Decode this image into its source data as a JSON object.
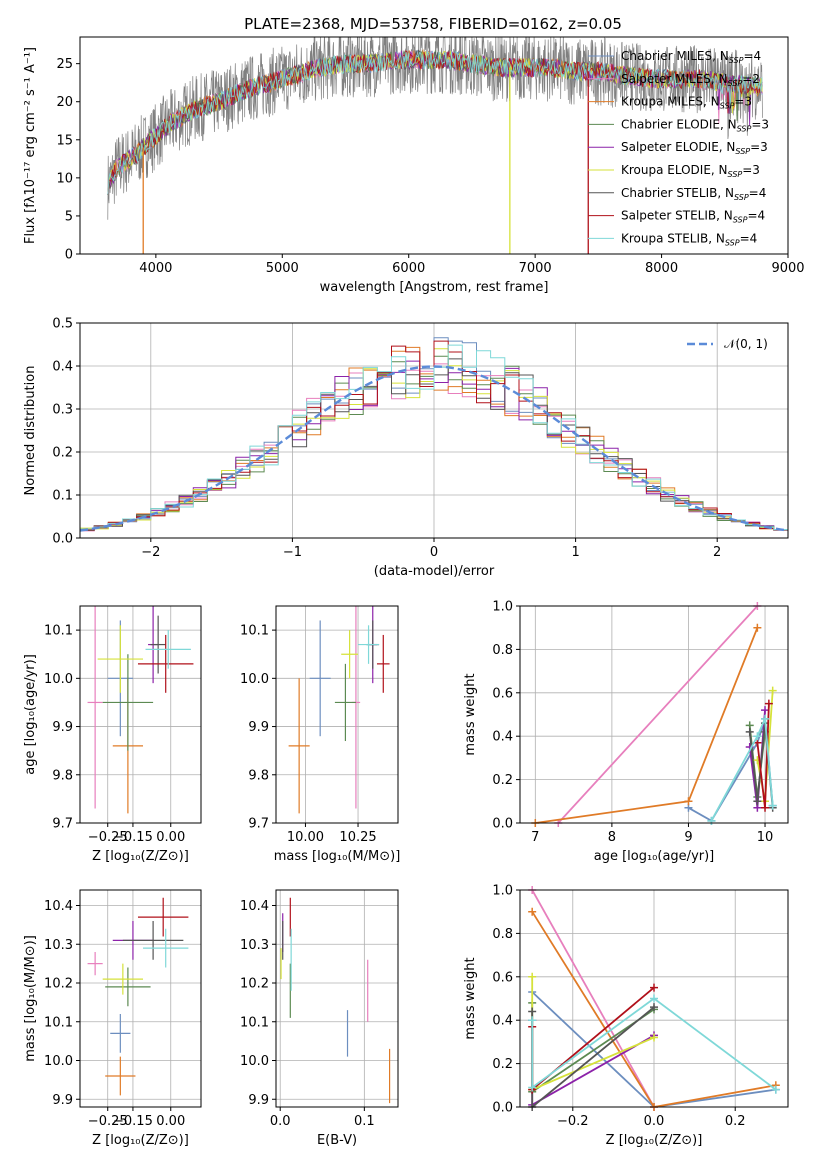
{
  "figure_title": "PLATE=2368, MJD=53758, FIBERID=0162, z=0.05",
  "colors": {
    "chab_miles": "#6c8ebf",
    "salp_miles": "#e77fbd",
    "krou_miles": "#e07b27",
    "chab_elodie": "#5c8a52",
    "salp_elodie": "#8c22a9",
    "krou_elodie": "#d6e23a",
    "chab_stelib": "#555555",
    "salp_stelib": "#b0101a",
    "krou_stelib": "#7fd8d8",
    "data": "#808080",
    "normal": "#5b8bd8"
  },
  "chart_data": [
    {
      "id": "spectrum",
      "type": "line",
      "xlabel": "wavelength [Angstrom, rest frame]",
      "ylabel": "Flux [fλ10⁻¹⁷ erg cm⁻² s⁻¹ A⁻¹]",
      "xlim": [
        3400,
        9000
      ],
      "ylim": [
        0,
        28.5
      ],
      "xticks": [
        "4000",
        "5000",
        "6000",
        "7000",
        "8000",
        "9000"
      ],
      "yticks": [
        "0",
        "5",
        "10",
        "15",
        "20",
        "25"
      ],
      "legend_position": "right",
      "legend": [
        {
          "label": "Chabrier MILES, N",
          "sub": "SSP",
          "tail": "=4"
        },
        {
          "label": "Salpeter MILES, N",
          "sub": "SSP",
          "tail": "=2"
        },
        {
          "label": "Kroupa MILES, N",
          "sub": "SSP",
          "tail": "=3"
        },
        {
          "label": "Chabrier ELODIE, N",
          "sub": "SSP",
          "tail": "=3"
        },
        {
          "label": "Salpeter ELODIE, N",
          "sub": "SSP",
          "tail": "=3"
        },
        {
          "label": "Kroupa ELODIE, N",
          "sub": "SSP",
          "tail": "=3"
        },
        {
          "label": "Chabrier STELIB, N",
          "sub": "SSP",
          "tail": "=4"
        },
        {
          "label": "Salpeter STELIB, N",
          "sub": "SSP",
          "tail": "=4"
        },
        {
          "label": "Kroupa STELIB, N",
          "sub": "SSP",
          "tail": "=4"
        }
      ],
      "continuum": [
        [
          3620,
          9
        ],
        [
          3700,
          11.5
        ],
        [
          3800,
          12.5
        ],
        [
          3900,
          14
        ],
        [
          4000,
          15.5
        ],
        [
          4100,
          17
        ],
        [
          4300,
          19
        ],
        [
          4500,
          20
        ],
        [
          4700,
          21.5
        ],
        [
          4900,
          22.5
        ],
        [
          5100,
          23.5
        ],
        [
          5300,
          24.5
        ],
        [
          5500,
          25
        ],
        [
          5700,
          25
        ],
        [
          5900,
          25.5
        ],
        [
          6100,
          25.5
        ],
        [
          6300,
          25.5
        ],
        [
          6500,
          25
        ],
        [
          6700,
          24.5
        ],
        [
          6900,
          24.5
        ],
        [
          7100,
          24.5
        ],
        [
          7300,
          24
        ],
        [
          7500,
          24
        ],
        [
          7700,
          23.5
        ],
        [
          7900,
          23
        ],
        [
          8100,
          23
        ],
        [
          8300,
          23
        ],
        [
          8500,
          22.5
        ],
        [
          8800,
          22
        ]
      ],
      "dropouts": [
        [
          3900,
          0
        ],
        [
          6800,
          0
        ],
        [
          7420,
          0
        ]
      ]
    },
    {
      "id": "residuals",
      "type": "histogram",
      "xlabel": "(data-model)/error",
      "ylabel": "Normed distribution",
      "xlim": [
        -2.5,
        2.5
      ],
      "ylim": [
        0,
        0.5
      ],
      "xticks": [
        "−2",
        "−1",
        "0",
        "1",
        "2"
      ],
      "yticks": [
        "0.0",
        "0.1",
        "0.2",
        "0.3",
        "0.4",
        "0.5"
      ],
      "legend": "𝒩(0, 1)",
      "bin_width": 0.1
    },
    {
      "id": "age_vs_Z",
      "type": "scatter",
      "xlabel": "Z [log₁₀(Z/Z⊙)]",
      "ylabel": "age  [log₁₀(age/yr)]",
      "xlim": [
        -0.36,
        0.12
      ],
      "ylim": [
        9.7,
        10.15
      ],
      "xticks": [
        "−0.25",
        "−0.15",
        "0.00"
      ],
      "yticks": [
        "9.7",
        "9.8",
        "9.9",
        "10.0",
        "10.1"
      ],
      "points": [
        {
          "s": "chab_miles",
          "x": -0.2,
          "xe": 0.05,
          "y": 10.0,
          "ye": 0.12
        },
        {
          "s": "salp_miles",
          "x": -0.3,
          "xe": 0.03,
          "y": 9.95,
          "ye": 0.22
        },
        {
          "s": "krou_miles",
          "x": -0.17,
          "xe": 0.06,
          "y": 9.86,
          "ye": 0.14
        },
        {
          "s": "chab_elodie",
          "x": -0.17,
          "xe": 0.1,
          "y": 9.95,
          "ye": 0.1
        },
        {
          "s": "salp_elodie",
          "x": -0.07,
          "xe": 0.02,
          "y": 10.07,
          "ye": 0.08
        },
        {
          "s": "krou_elodie",
          "x": -0.2,
          "xe": 0.09,
          "y": 10.04,
          "ye": 0.07
        },
        {
          "s": "chab_stelib",
          "x": -0.05,
          "xe": 0.03,
          "y": 10.07,
          "ye": 0.06
        },
        {
          "s": "salp_stelib",
          "x": -0.02,
          "xe": 0.11,
          "y": 10.03,
          "ye": 0.06
        },
        {
          "s": "krou_stelib",
          "x": -0.01,
          "xe": 0.09,
          "y": 10.06,
          "ye": 0.04
        }
      ]
    },
    {
      "id": "age_vs_mass",
      "type": "scatter",
      "xlabel": "mass [log₁₀(M/M⊙)]",
      "ylabel": "",
      "xlim": [
        9.86,
        10.44
      ],
      "ylim": [
        9.7,
        10.15
      ],
      "xticks": [
        "10.00",
        "10.25"
      ],
      "yticks": [
        "9.7",
        "9.8",
        "9.9",
        "10.0",
        "10.1"
      ],
      "points": [
        {
          "s": "chab_miles",
          "x": 10.07,
          "xe": 0.05,
          "y": 10.0,
          "ye": 0.12
        },
        {
          "s": "salp_miles",
          "x": 10.24,
          "xe": 0.02,
          "y": 9.95,
          "ye": 0.22
        },
        {
          "s": "krou_miles",
          "x": 9.97,
          "xe": 0.05,
          "y": 9.86,
          "ye": 0.14
        },
        {
          "s": "chab_elodie",
          "x": 10.19,
          "xe": 0.05,
          "y": 9.95,
          "ye": 0.08
        },
        {
          "s": "salp_elodie",
          "x": 10.32,
          "xe": 0.02,
          "y": 10.07,
          "ye": 0.08
        },
        {
          "s": "krou_elodie",
          "x": 10.21,
          "xe": 0.04,
          "y": 10.05,
          "ye": 0.05
        },
        {
          "s": "chab_stelib",
          "x": 10.32,
          "xe": 0.03,
          "y": 10.07,
          "ye": 0.05
        },
        {
          "s": "salp_stelib",
          "x": 10.37,
          "xe": 0.03,
          "y": 10.03,
          "ye": 0.06
        },
        {
          "s": "krou_stelib",
          "x": 10.3,
          "xe": 0.05,
          "y": 10.07,
          "ye": 0.04
        }
      ]
    },
    {
      "id": "weight_vs_age",
      "type": "line",
      "xlabel": "age  [log₁₀(age/yr)]",
      "ylabel": "mass weight",
      "xlim": [
        6.8,
        10.3
      ],
      "ylim": [
        0,
        1
      ],
      "xticks": [
        "7",
        "8",
        "9",
        "10"
      ],
      "yticks": [
        "0.0",
        "0.2",
        "0.4",
        "0.6",
        "0.8",
        "1.0"
      ],
      "series": [
        {
          "s": "chab_miles",
          "pts": [
            [
              9.0,
              0.07
            ],
            [
              9.3,
              0.01
            ],
            [
              9.9,
              0.37
            ],
            [
              10.0,
              0.48
            ],
            [
              10.1,
              0.08
            ]
          ]
        },
        {
          "s": "salp_miles",
          "pts": [
            [
              7.3,
              0.0
            ],
            [
              9.9,
              1.0
            ]
          ]
        },
        {
          "s": "krou_miles",
          "pts": [
            [
              7.0,
              0.0
            ],
            [
              9.0,
              0.1
            ],
            [
              9.9,
              0.9
            ]
          ]
        },
        {
          "s": "chab_elodie",
          "pts": [
            [
              9.8,
              0.45
            ],
            [
              9.9,
              0.12
            ],
            [
              10.0,
              0.42
            ]
          ]
        },
        {
          "s": "salp_elodie",
          "pts": [
            [
              9.8,
              0.35
            ],
            [
              9.9,
              0.07
            ],
            [
              10.0,
              0.52
            ]
          ]
        },
        {
          "s": "krou_elodie",
          "pts": [
            [
              9.9,
              0.29
            ],
            [
              10.0,
              0.1
            ],
            [
              10.1,
              0.61
            ]
          ]
        },
        {
          "s": "chab_stelib",
          "pts": [
            [
              9.8,
              0.42
            ],
            [
              9.9,
              0.1
            ],
            [
              10.0,
              0.46
            ],
            [
              10.1,
              0.07
            ]
          ]
        },
        {
          "s": "salp_stelib",
          "pts": [
            [
              9.9,
              0.37
            ],
            [
              10.0,
              0.07
            ],
            [
              10.05,
              0.55
            ]
          ]
        },
        {
          "s": "krou_stelib",
          "pts": [
            [
              9.3,
              0.01
            ],
            [
              9.9,
              0.4
            ],
            [
              10.0,
              0.48
            ],
            [
              10.1,
              0.08
            ]
          ]
        }
      ]
    },
    {
      "id": "mass_vs_Z",
      "type": "scatter",
      "xlabel": "Z [log₁₀(Z/Z⊙)]",
      "ylabel": "mass [log₁₀(M/M⊙)]",
      "xlim": [
        -0.36,
        0.12
      ],
      "ylim": [
        9.88,
        10.44
      ],
      "xticks": [
        "−0.25",
        "−0.15",
        "0.00"
      ],
      "yticks": [
        "9.9",
        "10.0",
        "10.1",
        "10.2",
        "10.3",
        "10.4"
      ],
      "points": [
        {
          "s": "chab_miles",
          "x": -0.2,
          "xe": 0.04,
          "y": 10.07,
          "ye": 0.05
        },
        {
          "s": "salp_miles",
          "x": -0.3,
          "xe": 0.03,
          "y": 10.25,
          "ye": 0.03
        },
        {
          "s": "krou_miles",
          "x": -0.2,
          "xe": 0.06,
          "y": 9.96,
          "ye": 0.05
        },
        {
          "s": "chab_elodie",
          "x": -0.17,
          "xe": 0.09,
          "y": 10.19,
          "ye": 0.05
        },
        {
          "s": "salp_elodie",
          "x": -0.15,
          "xe": 0.08,
          "y": 10.31,
          "ye": 0.05
        },
        {
          "s": "krou_elodie",
          "x": -0.19,
          "xe": 0.08,
          "y": 10.21,
          "ye": 0.04
        },
        {
          "s": "chab_stelib",
          "x": -0.07,
          "xe": 0.12,
          "y": 10.31,
          "ye": 0.05
        },
        {
          "s": "salp_stelib",
          "x": -0.03,
          "xe": 0.1,
          "y": 10.37,
          "ye": 0.05
        },
        {
          "s": "krou_stelib",
          "x": -0.02,
          "xe": 0.09,
          "y": 10.29,
          "ye": 0.05
        }
      ]
    },
    {
      "id": "mass_vs_ebv",
      "type": "scatter",
      "xlabel": "E(B-V)",
      "ylabel": "",
      "xlim": [
        -0.005,
        0.14
      ],
      "ylim": [
        9.88,
        10.44
      ],
      "xticks": [
        "0.0",
        "0.1"
      ],
      "yticks": [
        "9.9",
        "10.0",
        "10.1",
        "10.2",
        "10.3",
        "10.4"
      ],
      "points": [
        {
          "s": "chab_miles",
          "x": 0.08,
          "xe": 0,
          "y": 10.07,
          "ye": 0.06
        },
        {
          "s": "salp_miles",
          "x": 0.104,
          "xe": 0,
          "y": 10.18,
          "ye": 0.08
        },
        {
          "s": "krou_miles",
          "x": 0.13,
          "xe": 0,
          "y": 9.96,
          "ye": 0.07
        },
        {
          "s": "chab_elodie",
          "x": 0.012,
          "xe": 0,
          "y": 10.18,
          "ye": 0.07
        },
        {
          "s": "salp_elodie",
          "x": 0.003,
          "xe": 0,
          "y": 10.33,
          "ye": 0.05
        },
        {
          "s": "krou_elodie",
          "x": 0.001,
          "xe": 0,
          "y": 10.25,
          "ye": 0.04
        },
        {
          "s": "chab_stelib",
          "x": 0.003,
          "xe": 0,
          "y": 10.31,
          "ye": 0.05
        },
        {
          "s": "salp_stelib",
          "x": 0.012,
          "xe": 0,
          "y": 10.37,
          "ye": 0.05
        },
        {
          "s": "krou_stelib",
          "x": 0.013,
          "xe": 0,
          "y": 10.26,
          "ye": 0.08
        }
      ]
    },
    {
      "id": "weight_vs_Z",
      "type": "line",
      "xlabel": "Z [log₁₀(Z/Z⊙)]",
      "ylabel": "mass weight",
      "xlim": [
        -0.33,
        0.33
      ],
      "ylim": [
        0,
        1
      ],
      "xticks": [
        "−0.2",
        "0.0",
        "0.2"
      ],
      "yticks": [
        "0.0",
        "0.2",
        "0.4",
        "0.6",
        "0.8",
        "1.0"
      ],
      "series": [
        {
          "s": "chab_miles",
          "pts": [
            [
              -0.3,
              0.53
            ],
            [
              0.0,
              0.0
            ],
            [
              0.3,
              0.08
            ]
          ]
        },
        {
          "s": "salp_miles",
          "pts": [
            [
              -0.3,
              1.0
            ],
            [
              0.0,
              0.0
            ]
          ]
        },
        {
          "s": "krou_miles",
          "pts": [
            [
              -0.3,
              0.9
            ],
            [
              0.0,
              0.0
            ],
            [
              0.3,
              0.1
            ]
          ]
        },
        {
          "s": "chab_elodie",
          "pts": [
            [
              -0.3,
              0.48
            ],
            [
              -0.3,
              0.07
            ],
            [
              0.0,
              0.45
            ]
          ]
        },
        {
          "s": "salp_elodie",
          "pts": [
            [
              -0.3,
              0.4
            ],
            [
              -0.3,
              0.01
            ],
            [
              0.0,
              0.33
            ]
          ]
        },
        {
          "s": "krou_elodie",
          "pts": [
            [
              -0.3,
              0.6
            ],
            [
              -0.3,
              0.08
            ],
            [
              0.0,
              0.32
            ]
          ]
        },
        {
          "s": "chab_stelib",
          "pts": [
            [
              -0.3,
              0.44
            ],
            [
              -0.3,
              0.0
            ],
            [
              0.0,
              0.46
            ]
          ]
        },
        {
          "s": "salp_stelib",
          "pts": [
            [
              -0.3,
              0.37
            ],
            [
              -0.3,
              0.08
            ],
            [
              0.0,
              0.55
            ]
          ]
        },
        {
          "s": "krou_stelib",
          "pts": [
            [
              -0.3,
              0.4
            ],
            [
              -0.3,
              0.09
            ],
            [
              0.0,
              0.5
            ],
            [
              0.3,
              0.08
            ]
          ]
        }
      ]
    }
  ]
}
